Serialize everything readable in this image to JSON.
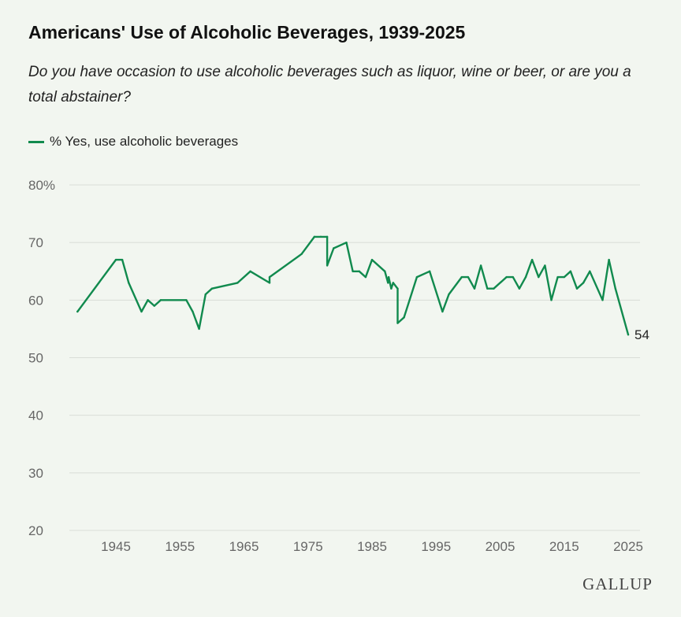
{
  "title": "Americans' Use of Alcoholic Beverages, 1939-2025",
  "subtitle": "Do you have occasion to use alcoholic beverages such as liquor, wine or beer, or are you a total abstainer?",
  "brand": "GALLUP",
  "colors": {
    "series": "#118a4e",
    "grid": "#d9ddd7",
    "axis_text": "#666666",
    "background": "#f2f6f0"
  },
  "chart_data": {
    "type": "line",
    "title": "Americans' Use of Alcoholic Beverages, 1939-2025",
    "subtitle": "Do you have occasion to use alcoholic beverages such as liquor, wine or beer, or are you a total abstainer?",
    "xlabel": "",
    "ylabel": "",
    "xlim": [
      1937,
      2026
    ],
    "ylim": [
      20,
      80
    ],
    "x_ticks": [
      1945,
      1955,
      1965,
      1975,
      1985,
      1995,
      2005,
      2015,
      2025
    ],
    "y_ticks": [
      20,
      30,
      40,
      50,
      60,
      70,
      80
    ],
    "y_tick_labels": [
      "20",
      "30",
      "40",
      "50",
      "60",
      "70",
      "80%"
    ],
    "grid": "horizontal",
    "legend_position": "top-left",
    "end_label": "54",
    "series": [
      {
        "name": "% Yes, use alcoholic beverages",
        "points": [
          [
            1939,
            58
          ],
          [
            1945,
            67
          ],
          [
            1946,
            67
          ],
          [
            1947,
            63
          ],
          [
            1949,
            58
          ],
          [
            1950,
            60
          ],
          [
            1951,
            59
          ],
          [
            1952,
            60
          ],
          [
            1956,
            60
          ],
          [
            1957,
            58
          ],
          [
            1958,
            55
          ],
          [
            1959,
            61
          ],
          [
            1960,
            62
          ],
          [
            1964,
            63
          ],
          [
            1966,
            65
          ],
          [
            1969,
            63
          ],
          [
            1969,
            64
          ],
          [
            1974,
            68
          ],
          [
            1976,
            71
          ],
          [
            1977,
            71
          ],
          [
            1978,
            71
          ],
          [
            1978,
            66
          ],
          [
            1979,
            69
          ],
          [
            1981,
            70
          ],
          [
            1982,
            65
          ],
          [
            1983,
            65
          ],
          [
            1984,
            64
          ],
          [
            1985,
            67
          ],
          [
            1987,
            65
          ],
          [
            1987.5,
            63
          ],
          [
            1987.6,
            64
          ],
          [
            1988,
            62
          ],
          [
            1988.3,
            63
          ],
          [
            1989,
            62
          ],
          [
            1989,
            56
          ],
          [
            1990,
            57
          ],
          [
            1992,
            64
          ],
          [
            1994,
            65
          ],
          [
            1996,
            58
          ],
          [
            1997,
            61
          ],
          [
            1999,
            64
          ],
          [
            2000,
            64
          ],
          [
            2001,
            62
          ],
          [
            2002,
            66
          ],
          [
            2003,
            62
          ],
          [
            2004,
            62
          ],
          [
            2006,
            64
          ],
          [
            2007,
            64
          ],
          [
            2008,
            62
          ],
          [
            2009,
            64
          ],
          [
            2010,
            67
          ],
          [
            2011,
            64
          ],
          [
            2012,
            66
          ],
          [
            2013,
            60
          ],
          [
            2014,
            64
          ],
          [
            2015,
            64
          ],
          [
            2016,
            65
          ],
          [
            2017,
            62
          ],
          [
            2018,
            63
          ],
          [
            2019,
            65
          ],
          [
            2021,
            60
          ],
          [
            2022,
            67
          ],
          [
            2023,
            62
          ],
          [
            2025,
            54
          ]
        ]
      }
    ]
  }
}
